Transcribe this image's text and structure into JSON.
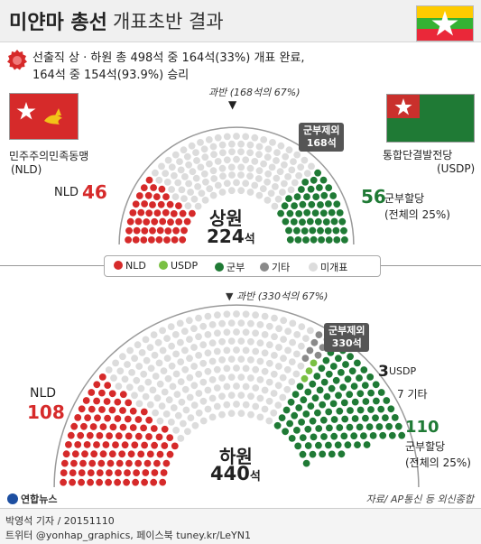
{
  "header": {
    "title_main": "미얀마 총선",
    "title_sub": "개표초반 결과"
  },
  "summary": {
    "line1": "선출직 상 · 하원 총 498석 중 164석(33%) 개표 완료,",
    "line2": "164석 중 154석(93.9%) 승리"
  },
  "parties": {
    "nld_name": "민주주의민족동맹",
    "nld_abbr": "(NLD)",
    "usdp_name": "통합단결발전당",
    "usdp_abbr": "(USDP)"
  },
  "upper_house": {
    "majority_label": "과반 (168석의 67%)",
    "arrow": "▼",
    "callout_line1": "군부제외",
    "callout_line2": "168석",
    "nld_label": "NLD",
    "nld_seats": "46",
    "military_seats": "56",
    "military_label": "군부할당",
    "military_pct": "(전체의 25%)",
    "house_name": "상원",
    "total_number": "224",
    "total_unit": "석"
  },
  "legend": [
    {
      "label": "NLD",
      "color": "#d62a2a"
    },
    {
      "label": "USDP",
      "color": "#7ac043"
    },
    {
      "label": "군부",
      "color": "#1f7a35"
    },
    {
      "label": "기타",
      "color": "#8a8a8a"
    },
    {
      "label": "미개표",
      "color": "#dcdcdc"
    }
  ],
  "lower_house": {
    "majority_label": "▼ 과반 (330석의 67%)",
    "callout_line1": "군부제외",
    "callout_line2": "330석",
    "nld_label": "NLD",
    "nld_seats": "108",
    "usdp_seats": "3",
    "usdp_label": "USDP",
    "other_label": "7 기타",
    "military_seats": "110",
    "military_label": "군부할당",
    "military_pct": "(전체의 25%)",
    "house_name": "하원",
    "total_number": "440",
    "total_unit": "석"
  },
  "footer": {
    "logo": "연합뉴스",
    "source": "자료/ AP통신 등 외신종합",
    "credit_line1": "박영석 기자 / 20151110",
    "credit_line2": "트위터 @yonhap_graphics, 페이스북 tuney.kr/LeYN1"
  },
  "chart_data": [
    {
      "type": "parliament",
      "title": "상원",
      "total": 224,
      "series": [
        {
          "name": "NLD",
          "value": 46,
          "color": "#d62a2a"
        },
        {
          "name": "USDP",
          "value": 0,
          "color": "#7ac043"
        },
        {
          "name": "군부",
          "value": 56,
          "color": "#1f7a35"
        },
        {
          "name": "기타",
          "value": 0,
          "color": "#8a8a8a"
        },
        {
          "name": "미개표",
          "value": 122,
          "color": "#dcdcdc"
        }
      ]
    },
    {
      "type": "parliament",
      "title": "하원",
      "total": 440,
      "series": [
        {
          "name": "NLD",
          "value": 108,
          "color": "#d62a2a"
        },
        {
          "name": "USDP",
          "value": 3,
          "color": "#7ac043"
        },
        {
          "name": "군부",
          "value": 110,
          "color": "#1f7a35"
        },
        {
          "name": "기타",
          "value": 7,
          "color": "#8a8a8a"
        },
        {
          "name": "미개표",
          "value": 212,
          "color": "#dcdcdc"
        }
      ]
    }
  ]
}
